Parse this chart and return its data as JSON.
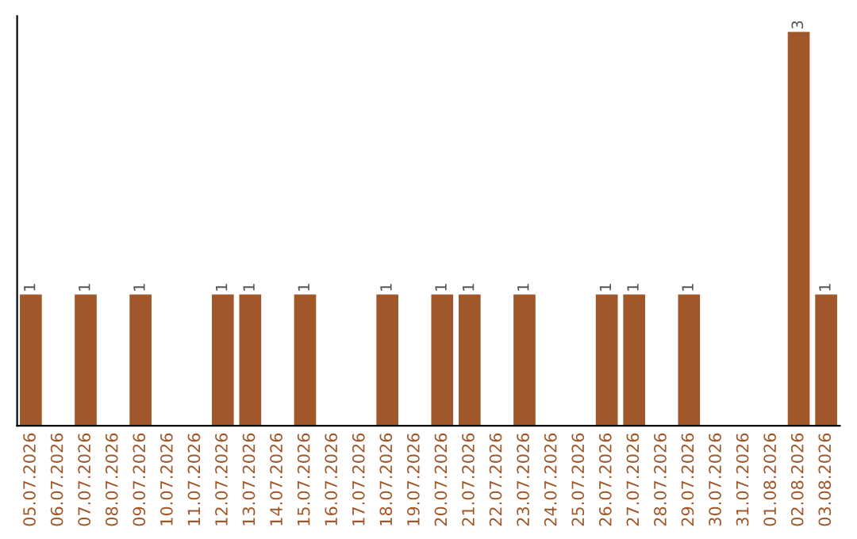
{
  "chart_data": {
    "type": "bar",
    "categories": [
      "05.07.2026",
      "06.07.2026",
      "07.07.2026",
      "08.07.2026",
      "09.07.2026",
      "10.07.2026",
      "11.07.2026",
      "12.07.2026",
      "13.07.2026",
      "14.07.2026",
      "15.07.2026",
      "16.07.2026",
      "17.07.2026",
      "18.07.2026",
      "19.07.2026",
      "20.07.2026",
      "21.07.2026",
      "22.07.2026",
      "23.07.2026",
      "24.07.2026",
      "25.07.2026",
      "26.07.2026",
      "27.07.2026",
      "28.07.2026",
      "29.07.2026",
      "30.07.2026",
      "31.07.2026",
      "01.08.2026",
      "02.08.2026",
      "03.08.2026"
    ],
    "values": [
      1,
      0,
      1,
      0,
      1,
      0,
      0,
      1,
      1,
      0,
      1,
      0,
      0,
      1,
      0,
      1,
      1,
      0,
      1,
      0,
      0,
      1,
      1,
      0,
      1,
      0,
      0,
      0,
      3,
      1
    ],
    "value_labels": [
      "1",
      null,
      "1",
      null,
      "1",
      null,
      null,
      "1",
      "1",
      null,
      "1",
      null,
      null,
      "1",
      null,
      "1",
      "1",
      null,
      "1",
      null,
      null,
      "1",
      "1",
      null,
      "1",
      null,
      null,
      null,
      "3",
      "1"
    ],
    "color": "#a0582a",
    "grid": false,
    "legend": false
  }
}
